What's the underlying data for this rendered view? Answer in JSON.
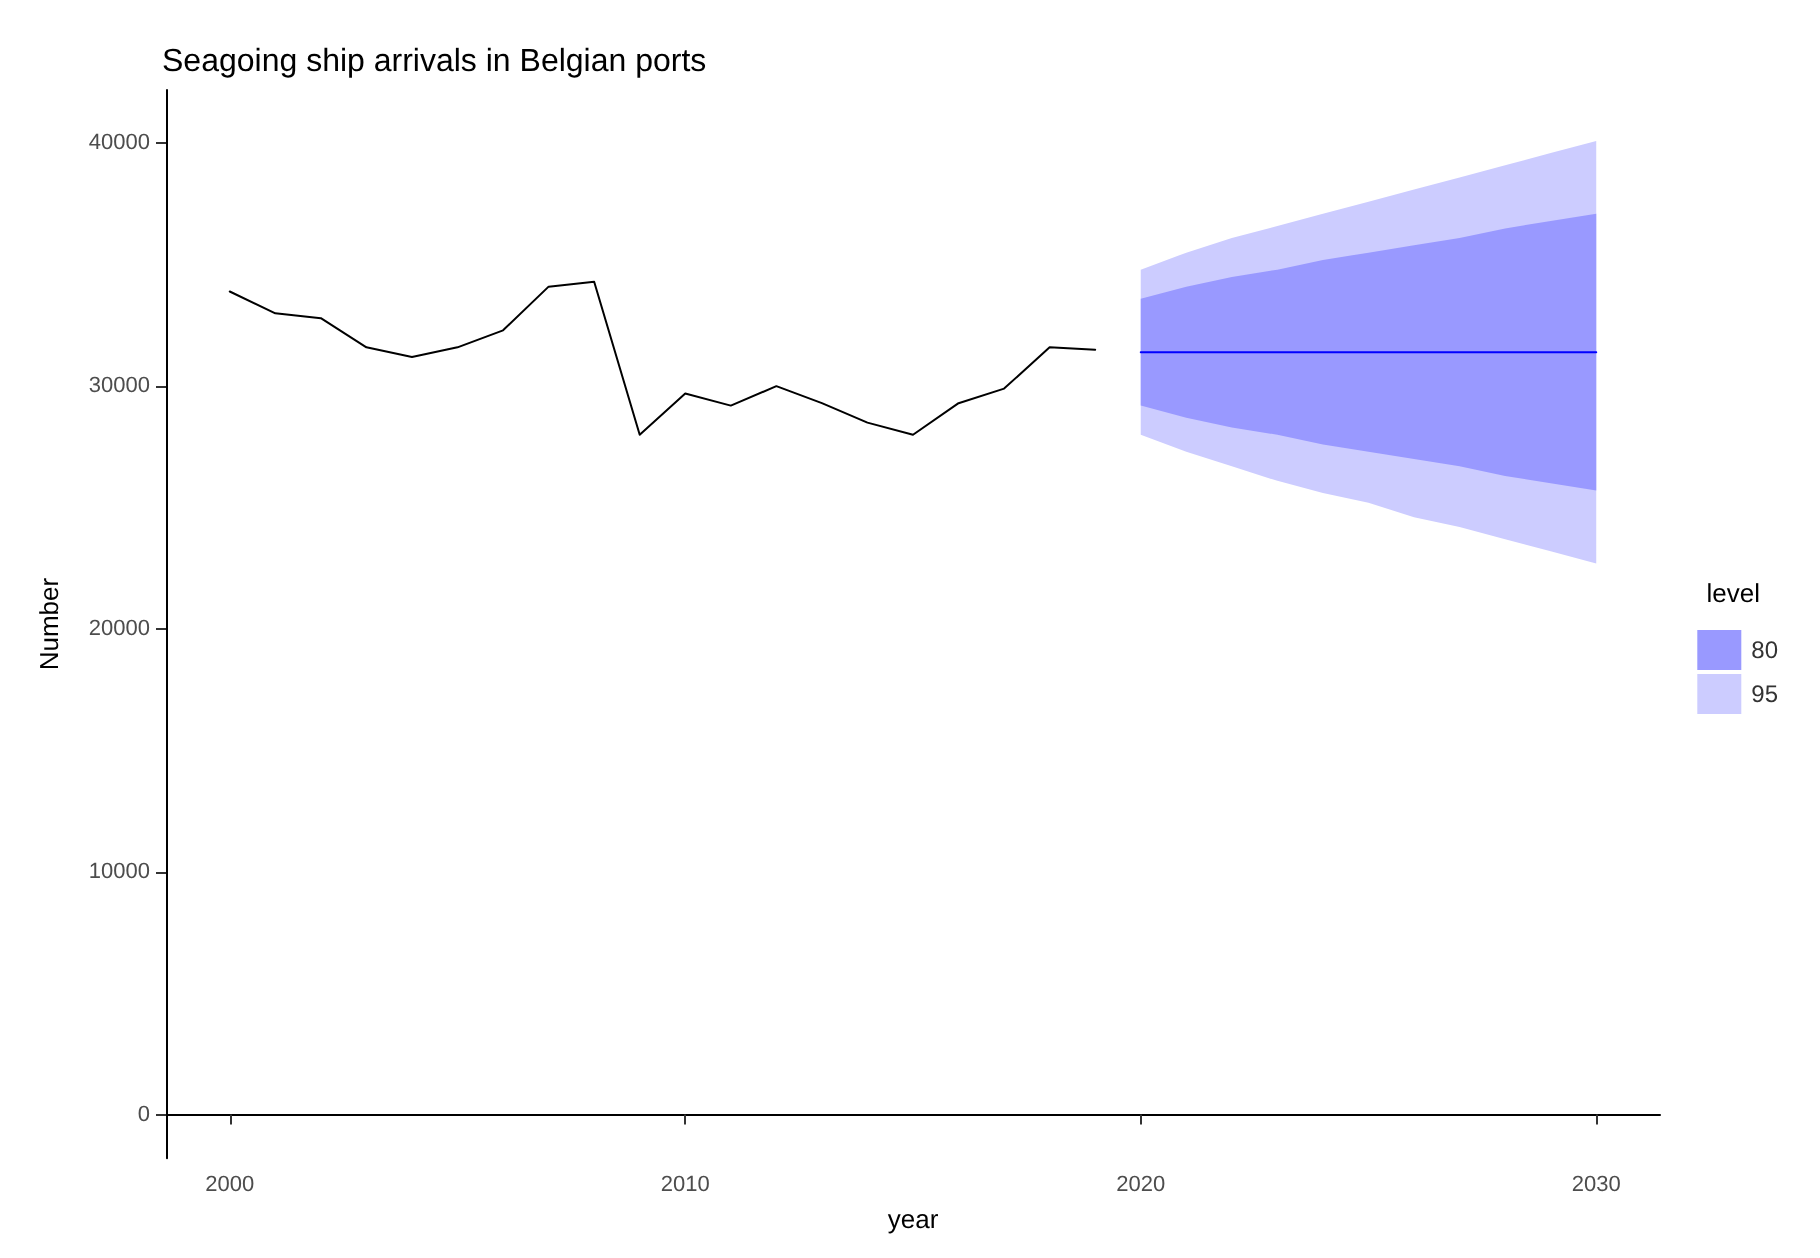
{
  "chart_data": {
    "type": "line",
    "title": "Seagoing ship arrivals in Belgian ports",
    "xlabel": "year",
    "ylabel": "Number",
    "legend_title": "level",
    "xlim": [
      1998.6,
      2031.4
    ],
    "ylim": [
      -1800,
      42200
    ],
    "xticks": [
      2000,
      2010,
      2020,
      2030
    ],
    "yticks": [
      0,
      10000,
      20000,
      30000,
      40000
    ],
    "grid": false,
    "legend": "right",
    "marker": "none",
    "line_style": "solid",
    "series": [
      {
        "color": "#000000",
        "x": [
          2000,
          2001,
          2002,
          2003,
          2004,
          2005,
          2006,
          2007,
          2008,
          2009,
          2010,
          2011,
          2012,
          2013,
          2014,
          2015,
          2016,
          2017,
          2018,
          2019
        ],
        "values": [
          33900,
          33000,
          32800,
          31600,
          31200,
          31600,
          32300,
          34100,
          34300,
          28000,
          29700,
          29200,
          30000,
          29300,
          28500,
          28000,
          29300,
          29900,
          31600,
          31500
        ]
      },
      {
        "name": "95",
        "type": "area",
        "color": "#ccccff",
        "x": [
          2020,
          2021,
          2022,
          2023,
          2024,
          2025,
          2026,
          2027,
          2028,
          2029,
          2030
        ],
        "values": [
          null,
          null,
          null,
          null,
          null,
          null,
          null,
          null,
          null,
          null,
          null
        ],
        "lower": [
          28000,
          27300,
          26700,
          26100,
          25600,
          25200,
          24600,
          24200,
          23700,
          23200,
          22700
        ],
        "upper": [
          34800,
          35500,
          36100,
          36600,
          37100,
          37600,
          38100,
          38600,
          39100,
          39600,
          40100
        ]
      },
      {
        "name": "80",
        "type": "area",
        "color": "#9999ff",
        "x": [
          2020,
          2021,
          2022,
          2023,
          2024,
          2025,
          2026,
          2027,
          2028,
          2029,
          2030
        ],
        "values": [
          null,
          null,
          null,
          null,
          null,
          null,
          null,
          null,
          null,
          null,
          null
        ],
        "lower": [
          29200,
          28700,
          28300,
          28000,
          27600,
          27300,
          27000,
          26700,
          26300,
          26000,
          25700
        ],
        "upper": [
          33600,
          34100,
          34500,
          34800,
          35200,
          35500,
          35800,
          36100,
          36500,
          36800,
          37100
        ]
      },
      {
        "color": "#0000ff",
        "x": [
          2020,
          2021,
          2022,
          2023,
          2024,
          2025,
          2026,
          2027,
          2028,
          2029,
          2030
        ],
        "values": [
          31400,
          31400,
          31400,
          31400,
          31400,
          31400,
          31400,
          31400,
          31400,
          31400,
          31400
        ]
      }
    ]
  }
}
